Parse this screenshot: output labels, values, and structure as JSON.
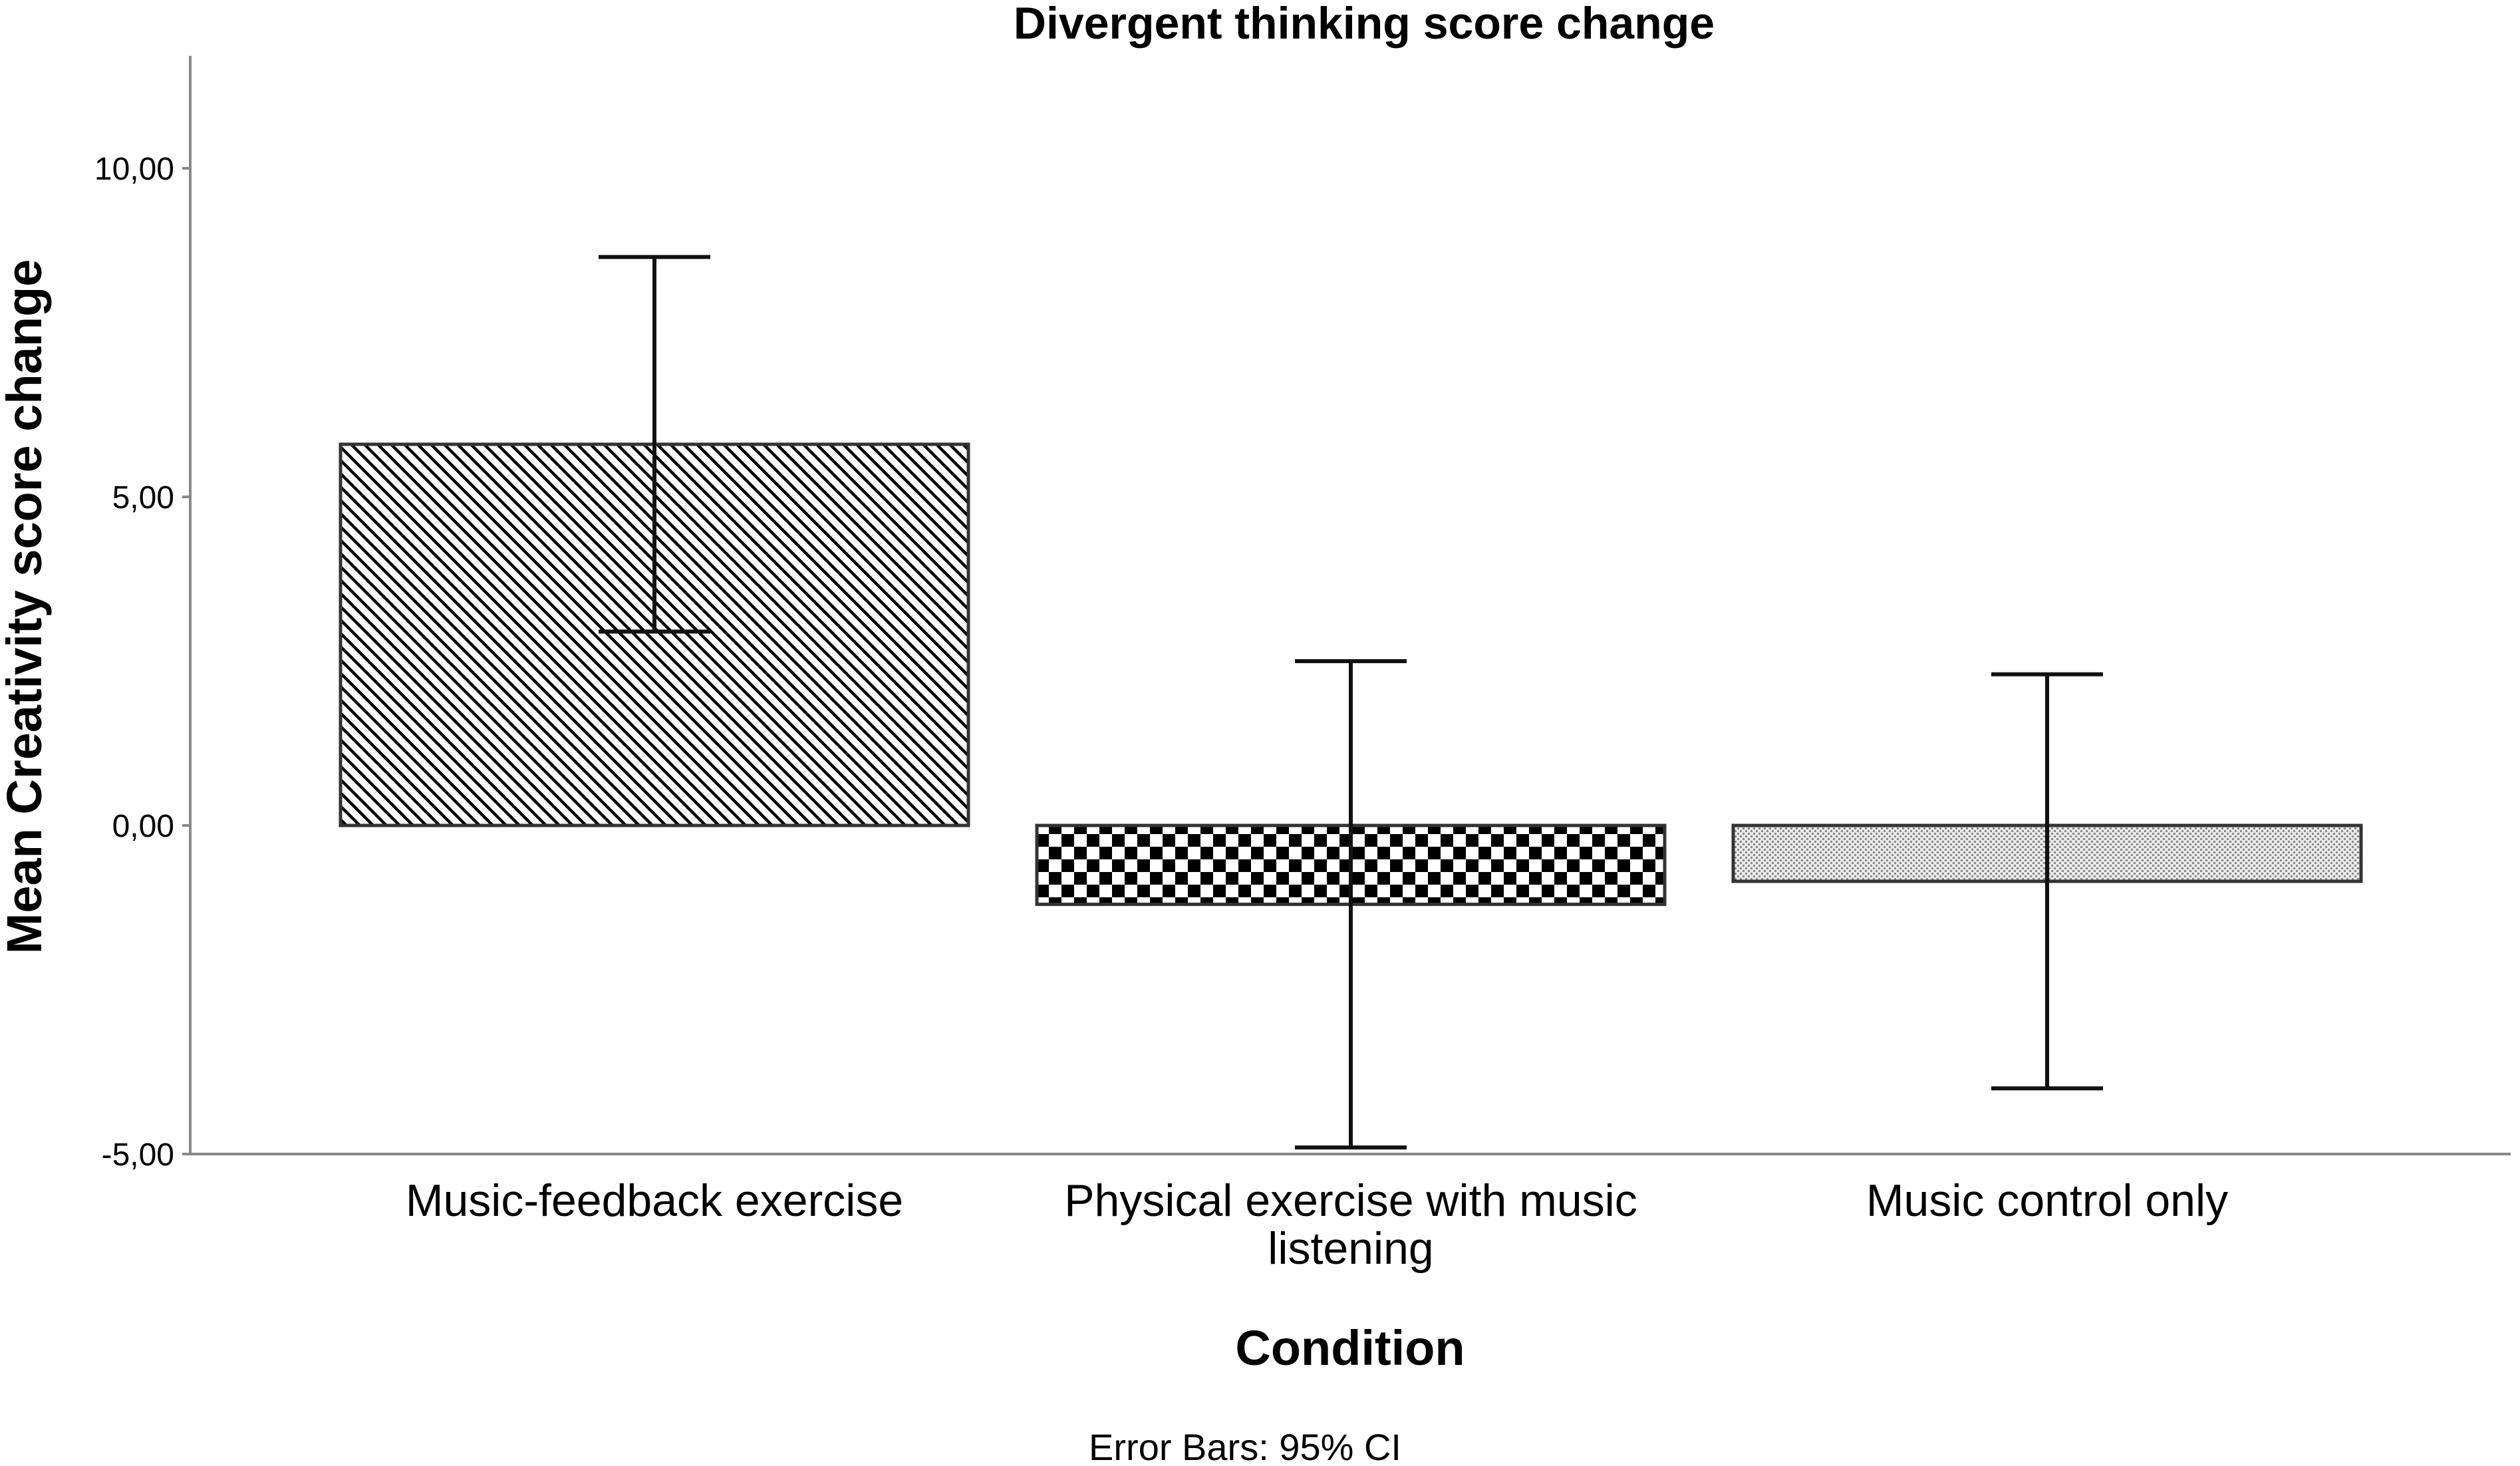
{
  "chart_data": {
    "type": "bar",
    "title": "Divergent thinking score change",
    "xlabel": "Condition",
    "ylabel": "Mean Creativity score change",
    "footnote": "Error Bars: 95% CI",
    "ylim": [
      -5,
      11.7
    ],
    "yticks": [
      10,
      5,
      0,
      -5
    ],
    "ytick_labels": [
      "10,00",
      "5,00",
      "0,00",
      "-5,00"
    ],
    "grid": false,
    "categories": [
      [
        "Music-feedback exercise"
      ],
      [
        "Physical exercise with music",
        "listening"
      ],
      [
        "Music control only"
      ]
    ],
    "values": [
      5.8,
      -1.2,
      -0.85
    ],
    "error_low": [
      2.95,
      -4.9,
      -4.0
    ],
    "error_high": [
      8.65,
      2.5,
      2.3
    ],
    "patterns": [
      "diagonal-hatch",
      "checkerboard",
      "dotted"
    ]
  }
}
